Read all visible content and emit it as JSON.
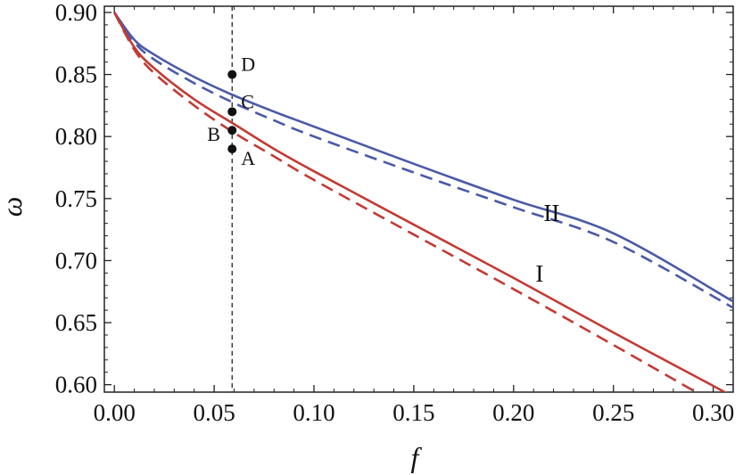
{
  "chart_data": {
    "type": "line",
    "xlabel": "f",
    "ylabel": "ω",
    "xlim": [
      -0.005,
      0.31
    ],
    "ylim": [
      0.594,
      0.905
    ],
    "x_ticks": [
      "0.00",
      "0.05",
      "0.10",
      "0.15",
      "0.20",
      "0.25",
      "0.30"
    ],
    "x_tick_values": [
      0.0,
      0.05,
      0.1,
      0.15,
      0.2,
      0.25,
      0.3
    ],
    "y_ticks": [
      "0.60",
      "0.65",
      "0.70",
      "0.75",
      "0.80",
      "0.85",
      "0.90"
    ],
    "y_tick_values": [
      0.6,
      0.65,
      0.7,
      0.75,
      0.8,
      0.85,
      0.9
    ],
    "grid": false,
    "series": [
      {
        "name": "II",
        "color": "#4a5aa6",
        "dash": false,
        "x": [
          0.0,
          0.01,
          0.02,
          0.04,
          0.06,
          0.08,
          0.1,
          0.15,
          0.2,
          0.25,
          0.31
        ],
        "y": [
          0.9,
          0.878,
          0.866,
          0.848,
          0.833,
          0.82,
          0.808,
          0.778,
          0.749,
          0.722,
          0.667
        ]
      },
      {
        "name": "",
        "color": "#4a5aa6",
        "dash": true,
        "x": [
          0.0,
          0.01,
          0.02,
          0.04,
          0.06,
          0.08,
          0.1,
          0.15,
          0.2,
          0.25,
          0.31
        ],
        "y": [
          0.9,
          0.876,
          0.862,
          0.843,
          0.827,
          0.813,
          0.8,
          0.771,
          0.743,
          0.715,
          0.662
        ]
      },
      {
        "name": "I",
        "color": "#c23b35",
        "dash": false,
        "x": [
          0.0,
          0.01,
          0.02,
          0.04,
          0.06,
          0.08,
          0.1,
          0.15,
          0.2,
          0.25,
          0.3,
          0.31
        ],
        "y": [
          0.9,
          0.872,
          0.855,
          0.83,
          0.81,
          0.79,
          0.772,
          0.729,
          0.686,
          0.642,
          0.599,
          0.59
        ]
      },
      {
        "name": "",
        "color": "#c23b35",
        "dash": true,
        "x": [
          0.0,
          0.01,
          0.02,
          0.04,
          0.06,
          0.08,
          0.1,
          0.15,
          0.2,
          0.25,
          0.3
        ],
        "y": [
          0.9,
          0.87,
          0.851,
          0.825,
          0.803,
          0.784,
          0.765,
          0.721,
          0.677,
          0.632,
          0.586
        ]
      }
    ],
    "vline": {
      "x": 0.059,
      "style": "dashed",
      "color": "#222222"
    },
    "points": [
      {
        "label": "A",
        "x": 0.059,
        "y": 0.79
      },
      {
        "label": "B",
        "x": 0.059,
        "y": 0.805
      },
      {
        "label": "C",
        "x": 0.059,
        "y": 0.82
      },
      {
        "label": "D",
        "x": 0.059,
        "y": 0.85
      }
    ],
    "curve_labels": [
      {
        "text": "II",
        "x": 0.215,
        "y": 0.732
      },
      {
        "text": "I",
        "x": 0.211,
        "y": 0.683
      }
    ]
  }
}
